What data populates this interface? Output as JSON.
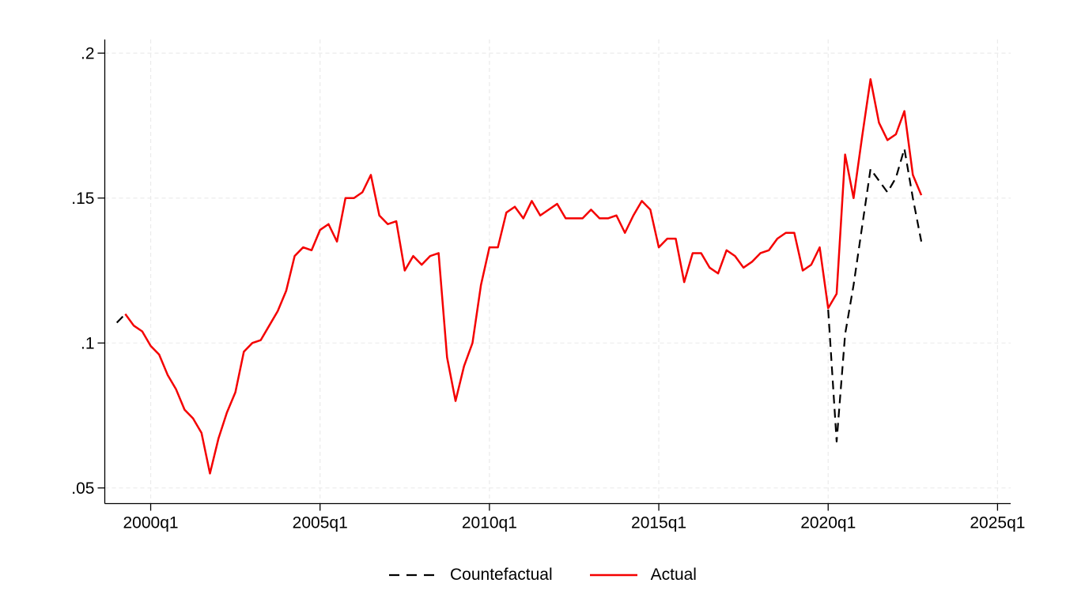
{
  "chart_data": {
    "type": "line",
    "title": "",
    "xlabel": "",
    "ylabel": "",
    "x_unit": "quarters since 1999q1",
    "x_start_label": "1999q1",
    "x_end_label": "2022q4",
    "grid": true,
    "legend_position": "bottom-center",
    "xlim": [
      -1.42,
      105.55
    ],
    "ylim": [
      0.0446,
      0.2047
    ],
    "y_ticks": [
      {
        "value": 0.05,
        "label": ".05"
      },
      {
        "value": 0.1,
        "label": ".1"
      },
      {
        "value": 0.15,
        "label": ".15"
      },
      {
        "value": 0.2,
        "label": ".2"
      }
    ],
    "x_ticks": [
      {
        "t": 4,
        "label": "2000q1"
      },
      {
        "t": 24,
        "label": "2005q1"
      },
      {
        "t": 44,
        "label": "2010q1"
      },
      {
        "t": 64,
        "label": "2015q1"
      },
      {
        "t": 84,
        "label": "2020q1"
      },
      {
        "t": 104,
        "label": "2025q1"
      }
    ],
    "colors": {
      "actual": "#f40000",
      "countefactual": "#000000",
      "gridline": "#ebebeb",
      "axis": "#000000"
    },
    "series": [
      {
        "name": "Countefactual",
        "color": "#000000",
        "line_style": "dashed",
        "segments": [
          {
            "t_start": 0,
            "quarters": [
              "1999q1",
              "1999q2"
            ],
            "values": [
              0.107,
              0.11
            ]
          },
          {
            "t_start": 84,
            "quarters": [
              "2020q1",
              "2020q2",
              "2020q3",
              "2020q4",
              "2021q1",
              "2021q2",
              "2021q3",
              "2021q4",
              "2022q1",
              "2022q2",
              "2022q3",
              "2022q4"
            ],
            "values": [
              0.1115,
              0.066,
              0.103,
              0.12,
              0.14,
              0.16,
              0.156,
              0.152,
              0.157,
              0.167,
              0.15,
              0.135
            ]
          }
        ]
      },
      {
        "name": "Actual",
        "color": "#f40000",
        "line_style": "solid",
        "segments": [
          {
            "t_start": 1,
            "quarters_note": "1999q2 through 2022q4, quarterly",
            "values": [
              0.11,
              0.106,
              0.104,
              0.099,
              0.096,
              0.089,
              0.084,
              0.077,
              0.074,
              0.069,
              0.055,
              0.067,
              0.076,
              0.083,
              0.097,
              0.1,
              0.101,
              0.106,
              0.111,
              0.118,
              0.13,
              0.133,
              0.132,
              0.139,
              0.141,
              0.135,
              0.15,
              0.15,
              0.152,
              0.158,
              0.144,
              0.141,
              0.142,
              0.125,
              0.13,
              0.127,
              0.13,
              0.131,
              0.095,
              0.08,
              0.092,
              0.1,
              0.12,
              0.133,
              0.133,
              0.145,
              0.147,
              0.143,
              0.149,
              0.144,
              0.146,
              0.148,
              0.143,
              0.143,
              0.143,
              0.146,
              0.143,
              0.143,
              0.144,
              0.138,
              0.144,
              0.149,
              0.146,
              0.133,
              0.136,
              0.136,
              0.121,
              0.131,
              0.131,
              0.126,
              0.124,
              0.132,
              0.13,
              0.126,
              0.128,
              0.131,
              0.132,
              0.136,
              0.138,
              0.138,
              0.125,
              0.127,
              0.133,
              0.112,
              0.117,
              0.165,
              0.15,
              0.171,
              0.191,
              0.176,
              0.17,
              0.172,
              0.18,
              0.158,
              0.151
            ]
          }
        ]
      }
    ]
  },
  "legend": {
    "items": [
      {
        "label": "Countefactual",
        "style": "dashed",
        "color": "#000000"
      },
      {
        "label": "Actual",
        "style": "solid",
        "color": "#f40000"
      }
    ]
  }
}
